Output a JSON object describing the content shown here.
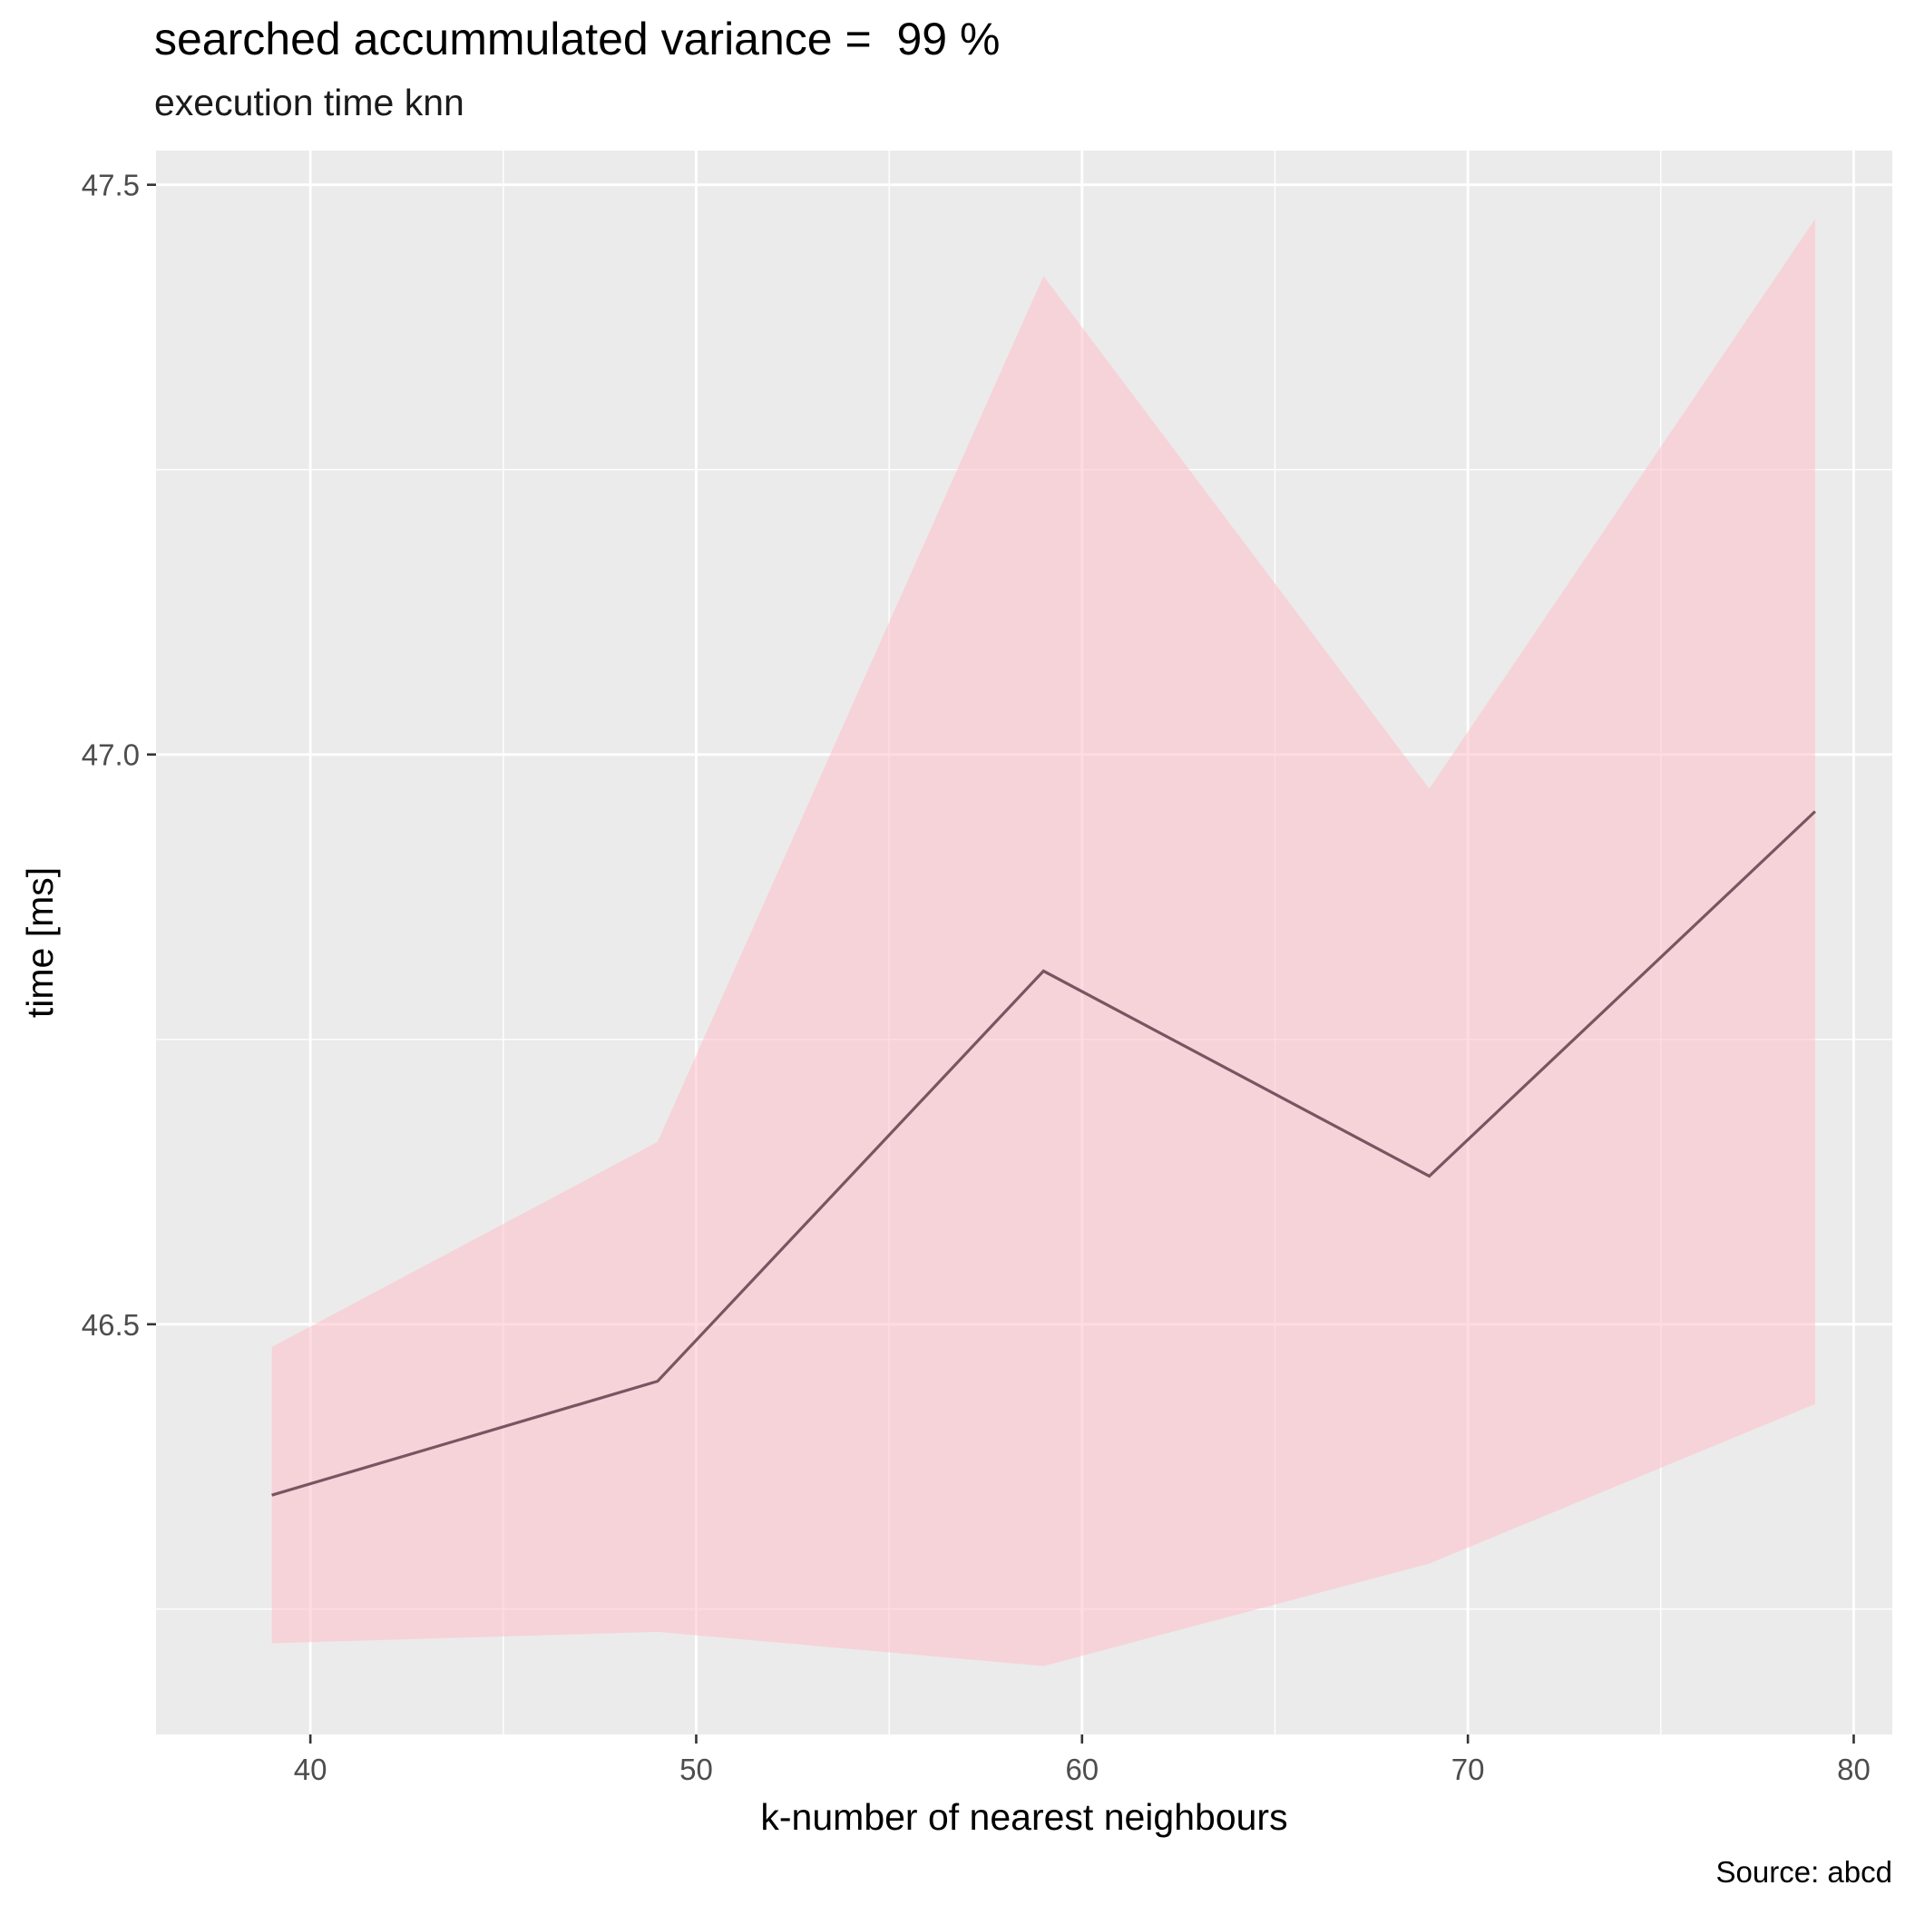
{
  "chart_data": {
    "type": "line",
    "title": "searched accummulated variance =  99 %",
    "subtitle": "execution time knn",
    "caption": "Source: abcd",
    "xlabel": "k-number of nearest neighbours",
    "ylabel": "time [ms]",
    "xlim": [
      36,
      81
    ],
    "ylim": [
      46.14,
      47.53
    ],
    "x_ticks": [
      40,
      50,
      60,
      70,
      80
    ],
    "y_ticks": [
      46.5,
      47.0,
      47.5
    ],
    "x_tick_labels": [
      "40",
      "50",
      "60",
      "70",
      "80"
    ],
    "y_tick_labels": [
      "46.5",
      "47.0",
      "47.5"
    ],
    "x_minor_breaks": [
      45,
      55,
      65,
      75
    ],
    "y_minor_breaks": [
      46.25,
      46.75,
      47.25
    ],
    "grid": true,
    "legend": "none",
    "series": [
      {
        "x": [
          39,
          49,
          59,
          69,
          79
        ],
        "values": [
          46.35,
          46.45,
          46.81,
          46.63,
          46.95
        ],
        "lower": [
          46.22,
          46.23,
          46.2,
          46.29,
          46.43
        ],
        "upper": [
          46.48,
          46.66,
          47.42,
          46.97,
          47.47
        ]
      }
    ],
    "colors": {
      "panel": "#ebebeb",
      "grid": "#ffffff",
      "ribbon": "#ffc0cb",
      "line": "#7a5461",
      "tick_text": "#4d4d4d",
      "tick_mark": "#333333"
    }
  }
}
